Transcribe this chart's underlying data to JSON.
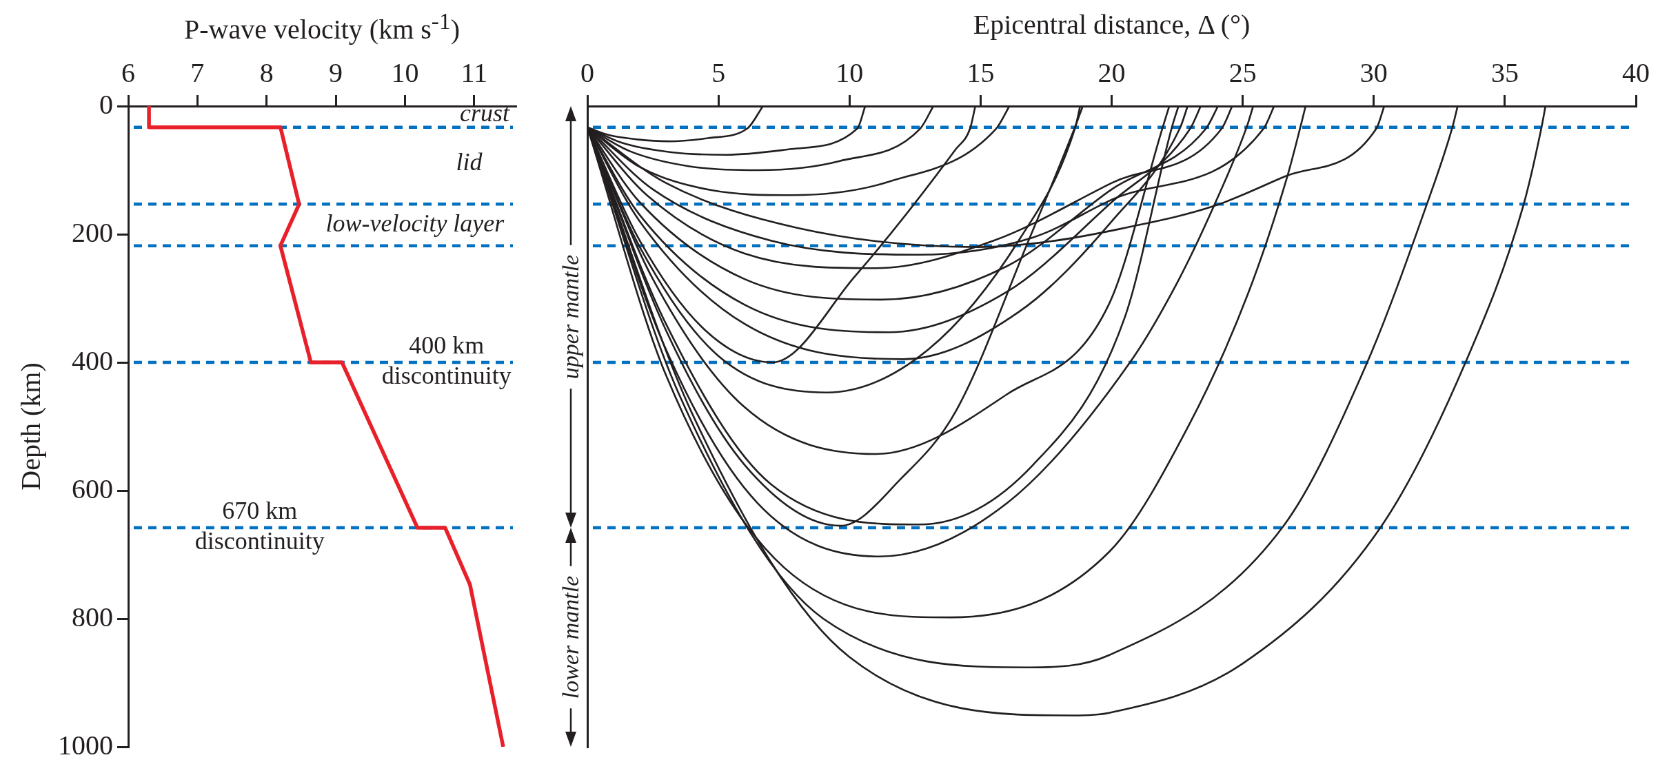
{
  "chart_data": [
    {
      "type": "line",
      "xlabel": "P-wave velocity (km s$^{-1}$)",
      "ylabel": "Depth (km)",
      "xlim": [
        6,
        11.6
      ],
      "xticks": [
        6,
        7,
        8,
        9,
        10,
        11
      ],
      "ylim": [
        1000,
        0
      ],
      "yticks": [
        0,
        200,
        400,
        600,
        800,
        1000
      ],
      "series": [
        {
          "color": "#e8202a",
          "x": [
            6.3,
            6.3,
            8.2,
            8.47,
            8.2,
            8.64,
            9.09,
            10.18,
            10.58,
            10.94,
            11.42
          ],
          "values": [
            0,
            33,
            33,
            153,
            218,
            400,
            400,
            658,
            658,
            747,
            1000
          ]
        }
      ],
      "ref_lines": [
        {
          "axis": "y",
          "value": 33,
          "color": "#0070c0",
          "line_style": "dashed"
        },
        {
          "axis": "y",
          "value": 153,
          "color": "#0070c0",
          "line_style": "dashed"
        },
        {
          "axis": "y",
          "value": 218,
          "color": "#0070c0",
          "line_style": "dashed"
        },
        {
          "axis": "y",
          "value": 400,
          "color": "#0070c0",
          "line_style": "dashed"
        },
        {
          "axis": "y",
          "value": 658,
          "color": "#0070c0",
          "line_style": "dashed"
        }
      ],
      "annotations": [
        "crust",
        "lid",
        "low-velocity layer",
        {
          "text": "400 km discontinuity",
          "x": 10.6,
          "y": 400
        },
        {
          "text": "670 km discontinuity",
          "x": 7.9,
          "y": 658
        }
      ]
    },
    {
      "type": "line",
      "xlabel": "Epicentral distance, Δ (°)",
      "xlim": [
        0,
        40
      ],
      "xticks": [
        0,
        5,
        10,
        15,
        20,
        25,
        30,
        35,
        40
      ],
      "ylim": [
        1000,
        0
      ],
      "tick_labels": "x",
      "series": [
        {
          "color": "#231f20",
          "x": [
            0,
            0.8,
            1.9,
            3.1,
            4.6,
            6.1,
            6.7
          ],
          "values": [
            33,
            45,
            52,
            55,
            50,
            35,
            0
          ]
        },
        {
          "color": "#231f20",
          "x": [
            0,
            1.3,
            3.2,
            5.3,
            7.8,
            10.3,
            10.6
          ],
          "values": [
            33,
            57,
            72,
            76,
            67,
            35,
            0
          ]
        },
        {
          "color": "#231f20",
          "x": [
            0,
            1.6,
            3.9,
            6.5,
            9.6,
            12.7,
            13.2
          ],
          "values": [
            33,
            70,
            94,
            100,
            86,
            35,
            0
          ]
        },
        {
          "color": "#231f20",
          "x": [
            0,
            2,
            4.7,
            7.8,
            11.5,
            15.6,
            16.1
          ],
          "values": [
            33,
            95,
            131,
            139,
            118,
            35,
            0
          ]
        },
        {
          "color": "#231f20",
          "x": [
            0,
            3,
            8,
            14.9,
            17.5,
            20.4,
            23.9,
            26.6,
            30.1,
            30.4
          ],
          "values": [
            33,
            120,
            190,
            220,
            212,
            191,
            156,
            110,
            35,
            0
          ]
        },
        {
          "color": "#231f20",
          "x": [
            0,
            2.5,
            7,
            12.6,
            17,
            19.9,
            25.8,
            26.2
          ],
          "values": [
            33,
            130,
            210,
            232,
            205,
            148,
            35,
            0
          ]
        },
        {
          "color": "#231f20",
          "x": [
            0,
            2.3,
            6,
            11,
            15.5,
            20,
            24.2,
            24.6
          ],
          "values": [
            33,
            140,
            230,
            253,
            210,
            120,
            35,
            0
          ]
        },
        {
          "color": "#231f20",
          "x": [
            0,
            2,
            6,
            11.26,
            16,
            20,
            23.6,
            24.06
          ],
          "values": [
            33,
            150,
            270,
            302,
            250,
            130,
            35,
            0
          ]
        },
        {
          "color": "#231f20",
          "x": [
            0,
            2,
            6,
            11.5,
            16,
            20,
            23,
            23.4
          ],
          "values": [
            33,
            170,
            310,
            353,
            290,
            150,
            35,
            0
          ]
        },
        {
          "color": "#231f20",
          "x": [
            0,
            2,
            6,
            12.06,
            16.5,
            20,
            22.6,
            22.9
          ],
          "values": [
            33,
            180,
            340,
            395,
            320,
            180,
            35,
            0
          ]
        },
        {
          "color": "#231f20",
          "x": [
            0,
            2,
            5,
            9.13,
            13,
            16.5,
            18.6,
            18.8
          ],
          "values": [
            33,
            220,
            390,
            447,
            380,
            207,
            35,
            0
          ]
        },
        {
          "color": "#231f20",
          "x": [
            0,
            2,
            4.5,
            7.06,
            10.2,
            14.06,
            14.6,
            14.8
          ],
          "values": [
            33,
            210,
            350,
            400,
            266,
            67,
            35,
            0
          ]
        },
        {
          "color": "#231f20",
          "x": [
            0,
            2.5,
            6,
            11,
            16,
            19.9,
            21.95,
            22.2
          ],
          "values": [
            33,
            270,
            470,
            543,
            450,
            309,
            33,
            0
          ]
        },
        {
          "color": "#231f20",
          "x": [
            0,
            3,
            6,
            9.66,
            12,
            14.06,
            16.86,
            18.6,
            18.9
          ],
          "values": [
            33,
            350,
            560,
            655,
            580,
            476,
            207,
            33,
            0
          ]
        },
        {
          "color": "#231f20",
          "x": [
            0,
            3,
            7,
            12.66,
            17,
            20.5,
            22.3,
            22.55
          ],
          "values": [
            33,
            340,
            590,
            653,
            560,
            330,
            33,
            0
          ]
        },
        {
          "color": "#231f20",
          "x": [
            0,
            3,
            6.5,
            11.13,
            16,
            20.7,
            22.56,
            23.9,
            25.15,
            25.4
          ],
          "values": [
            33,
            380,
            620,
            703,
            620,
            400,
            271,
            156,
            33,
            0
          ]
        },
        {
          "color": "#231f20",
          "x": [
            0,
            3,
            7.5,
            13.86,
            19.9,
            22.96,
            25.2,
            26.7,
            27.2,
            27.4
          ],
          "values": [
            33,
            420,
            720,
            798,
            696,
            497,
            293,
            110,
            33,
            0
          ]
        },
        {
          "color": "#231f20",
          "x": [
            0,
            3.5,
            9,
            16.86,
            19.9,
            26.56,
            29.75,
            32,
            33,
            33.2
          ],
          "values": [
            33,
            450,
            800,
            876,
            857,
            655,
            400,
            156,
            33,
            0
          ]
        },
        {
          "color": "#231f20",
          "x": [
            0,
            4,
            10,
            18.52,
            19.9,
            25,
            30.3,
            33.5,
            35.7,
            36.4,
            36.55
          ],
          "values": [
            33,
            480,
            860,
            951,
            947,
            870,
            655,
            400,
            156,
            33,
            0
          ]
        }
      ],
      "ref_lines": [
        {
          "axis": "y",
          "value": 33,
          "color": "#0070c0",
          "line_style": "dashed"
        },
        {
          "axis": "y",
          "value": 153,
          "color": "#0070c0",
          "line_style": "dashed"
        },
        {
          "axis": "y",
          "value": 218,
          "color": "#0070c0",
          "line_style": "dashed"
        },
        {
          "axis": "y",
          "value": 400,
          "color": "#0070c0",
          "line_style": "dashed"
        },
        {
          "axis": "y",
          "value": 658,
          "color": "#0070c0",
          "line_style": "dashed"
        }
      ],
      "annotations": [
        "upper mantle",
        "lower mantle"
      ]
    }
  ]
}
